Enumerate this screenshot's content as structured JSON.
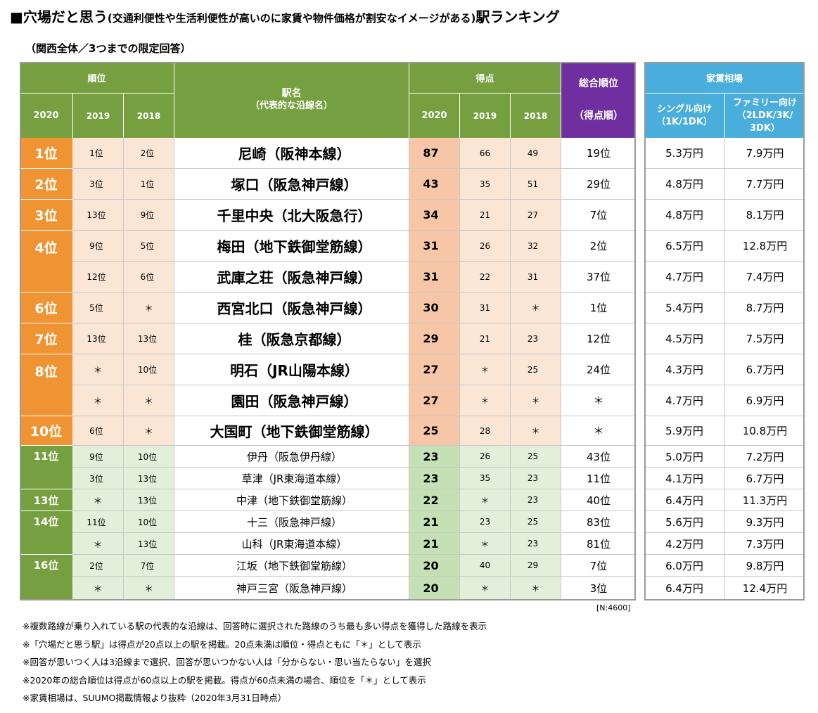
{
  "title": {
    "main_prefix": "■穴場だと思う",
    "paren": "(交通利便性や生活利便性が高いのに家賃や物件価格が割安なイメージがある)",
    "main_suffix": "駅ランキング"
  },
  "subtitle": "（関西全体／3つまでの限定回答）",
  "headers": {
    "rank_group": "順位",
    "station": "駅名",
    "station_sub": "（代表的な沿線名）",
    "score_group": "得点",
    "overall_line1": "総合順位",
    "overall_line2": "（得点順）",
    "rent_group": "家賃相場",
    "single_line1": "シングル向け",
    "single_line2": "（1K/1DK）",
    "family_line1": "ファミリー向け",
    "family_line2": "（2LDK/3K/",
    "family_line3": "3DK）",
    "year_2020": "2020",
    "year_2019": "2019",
    "year_2018": "2018"
  },
  "rank_labels": [
    {
      "label": "1位"
    },
    {
      "label": "2位"
    },
    {
      "label": "3位"
    },
    {
      "label": "4位"
    },
    {
      "label": "6位"
    },
    {
      "label": "7位"
    },
    {
      "label": "8位"
    },
    {
      "label": "10位"
    },
    {
      "label": "11位"
    },
    {
      "label": "13位"
    },
    {
      "label": "14位"
    },
    {
      "label": "16位"
    }
  ],
  "rows": [
    {
      "prev2019": "1位",
      "prev2018": "2位",
      "station": "尼崎（阪神本線）",
      "score2020": "87",
      "score2019": "66",
      "score2018": "49",
      "overall": "19位",
      "single": "5.3万円",
      "family": "7.9万円"
    },
    {
      "prev2019": "3位",
      "prev2018": "1位",
      "station": "塚口（阪急神戸線）",
      "score2020": "43",
      "score2019": "35",
      "score2018": "51",
      "overall": "29位",
      "single": "4.8万円",
      "family": "7.7万円"
    },
    {
      "prev2019": "13位",
      "prev2018": "9位",
      "station": "千里中央（北大阪急行）",
      "score2020": "34",
      "score2019": "21",
      "score2018": "27",
      "overall": "7位",
      "single": "4.8万円",
      "family": "8.1万円"
    },
    {
      "prev2019": "9位",
      "prev2018": "5位",
      "station": "梅田（地下鉄御堂筋線）",
      "score2020": "31",
      "score2019": "26",
      "score2018": "32",
      "overall": "2位",
      "single": "6.5万円",
      "family": "12.8万円"
    },
    {
      "prev2019": "12位",
      "prev2018": "6位",
      "station": "武庫之荘（阪急神戸線）",
      "score2020": "31",
      "score2019": "22",
      "score2018": "31",
      "overall": "37位",
      "single": "4.7万円",
      "family": "7.4万円"
    },
    {
      "prev2019": "5位",
      "prev2018": "＊",
      "station": "西宮北口（阪急神戸線）",
      "score2020": "30",
      "score2019": "31",
      "score2018": "＊",
      "overall": "1位",
      "single": "5.4万円",
      "family": "8.7万円"
    },
    {
      "prev2019": "13位",
      "prev2018": "13位",
      "station": "桂（阪急京都線）",
      "score2020": "29",
      "score2019": "21",
      "score2018": "23",
      "overall": "12位",
      "single": "4.5万円",
      "family": "7.5万円"
    },
    {
      "prev2019": "＊",
      "prev2018": "10位",
      "station": "明石（JR山陽本線）",
      "score2020": "27",
      "score2019": "＊",
      "score2018": "25",
      "overall": "24位",
      "single": "4.3万円",
      "family": "6.7万円"
    },
    {
      "prev2019": "＊",
      "prev2018": "＊",
      "station": "園田（阪急神戸線）",
      "score2020": "27",
      "score2019": "＊",
      "score2018": "＊",
      "overall": "＊",
      "single": "4.7万円",
      "family": "6.9万円"
    },
    {
      "prev2019": "6位",
      "prev2018": "＊",
      "station": "大国町（地下鉄御堂筋線）",
      "score2020": "25",
      "score2019": "28",
      "score2018": "＊",
      "overall": "＊",
      "single": "5.9万円",
      "family": "10.8万円"
    },
    {
      "prev2019": "9位",
      "prev2018": "10位",
      "station": "伊丹（阪急伊丹線）",
      "score2020": "23",
      "score2019": "26",
      "score2018": "25",
      "overall": "43位",
      "single": "5.0万円",
      "family": "7.2万円"
    },
    {
      "prev2019": "3位",
      "prev2018": "13位",
      "station": "草津（JR東海道本線）",
      "score2020": "23",
      "score2019": "35",
      "score2018": "23",
      "overall": "11位",
      "single": "4.1万円",
      "family": "6.7万円"
    },
    {
      "prev2019": "＊",
      "prev2018": "13位",
      "station": "中津（地下鉄御堂筋線）",
      "score2020": "22",
      "score2019": "＊",
      "score2018": "23",
      "overall": "40位",
      "single": "6.4万円",
      "family": "11.3万円"
    },
    {
      "prev2019": "11位",
      "prev2018": "10位",
      "station": "十三（阪急神戸線）",
      "score2020": "21",
      "score2019": "23",
      "score2018": "25",
      "overall": "83位",
      "single": "5.6万円",
      "family": "9.3万円"
    },
    {
      "prev2019": "＊",
      "prev2018": "13位",
      "station": "山科（JR東海道本線）",
      "score2020": "21",
      "score2019": "＊",
      "score2018": "23",
      "overall": "81位",
      "single": "4.2万円",
      "family": "7.3万円"
    },
    {
      "prev2019": "2位",
      "prev2018": "7位",
      "station": "江坂（地下鉄御堂筋線）",
      "score2020": "20",
      "score2019": "40",
      "score2018": "29",
      "overall": "7位",
      "single": "6.0万円",
      "family": "9.8万円"
    },
    {
      "prev2019": "＊",
      "prev2018": "＊",
      "station": "神戸三宮（阪急神戸線）",
      "score2020": "20",
      "score2019": "＊",
      "score2018": "＊",
      "overall": "3位",
      "single": "6.4万円",
      "family": "12.4万円"
    }
  ],
  "sample_size": "[N:4600]",
  "notes": [
    "※複数路線が乗り入れている駅の代表的な沿線は、回答時に選択された路線のうち最も多い得点を獲得した路線を表示",
    "※「穴場だと思う駅」は得点が20点以上の駅を掲載。20点未満は順位・得点ともに「＊」として表示",
    "※回答が思いつく人は3沿線まで選択、回答が思いつかない人は「分からない・思い当たらない」を選択",
    "※2020年の総合順位は得点が60点以上の駅を掲載。得点が60点未満の場合、順位を「＊」として表示",
    "※家賃相場は、SUUMO掲載情報より抜粋（2020年3月31日時点）"
  ],
  "colors": {
    "header_green": "#76a03f",
    "header_purple": "#6f2fa0",
    "header_blue": "#4aaedc",
    "rank_orange": "#f09433",
    "score_orange": "#f6c6a6",
    "light_orange": "#fbe5d5",
    "score_green": "#c5e0b4",
    "light_green": "#e2efd9"
  }
}
